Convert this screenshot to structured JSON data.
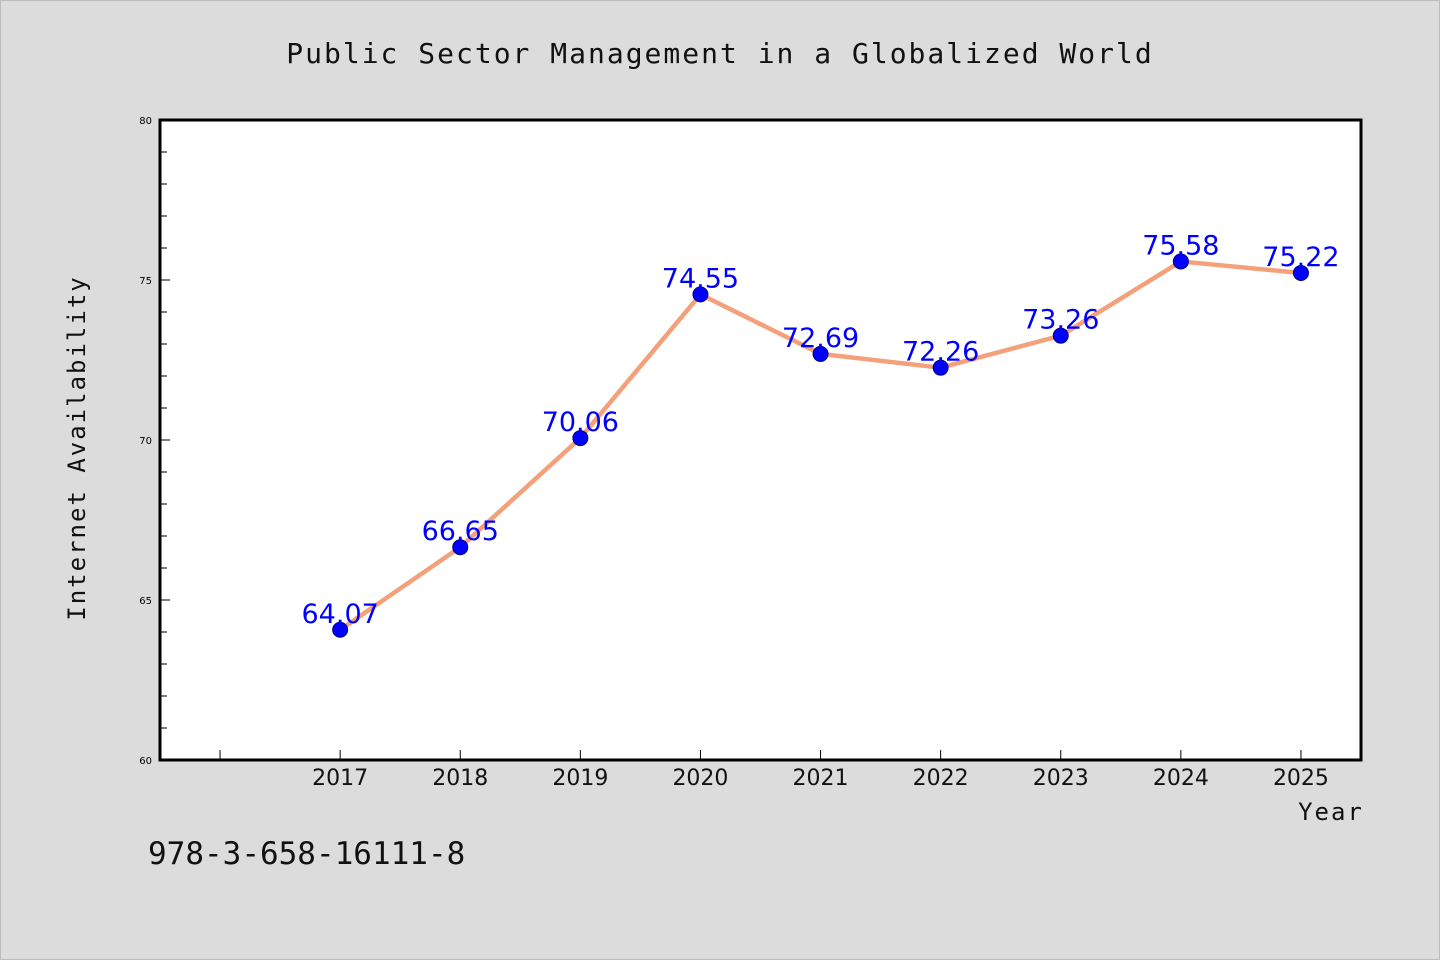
{
  "chart_data": {
    "type": "line",
    "title": "Public Sector Management in a Globalized World",
    "xlabel": "Year",
    "ylabel": "Internet Availability",
    "x": [
      "2017",
      "2018",
      "2019",
      "2020",
      "2021",
      "2022",
      "2023",
      "2024",
      "2025"
    ],
    "series": [
      {
        "values": [
          64.07,
          66.65,
          70.06,
          74.55,
          72.69,
          72.26,
          73.26,
          75.58,
          75.22
        ],
        "labels": [
          "64.07",
          "66.65",
          "70.06",
          "74.55",
          "72.69",
          "72.26",
          "73.26",
          "75.58",
          "75.22"
        ]
      }
    ],
    "ylim": [
      60,
      80
    ],
    "xlim": [
      2015.5,
      2025.5
    ],
    "yticks": [
      "60",
      "65",
      "70",
      "75",
      "80"
    ],
    "grid": false,
    "legend": "none",
    "colors": {
      "line": "#f4a07a",
      "marker": "#0000ff",
      "label": "#0000ff",
      "plot_background": "#ffffff",
      "page_background": "#dcdcdc"
    }
  },
  "footer": {
    "isbn": "978-3-658-16111-8"
  }
}
